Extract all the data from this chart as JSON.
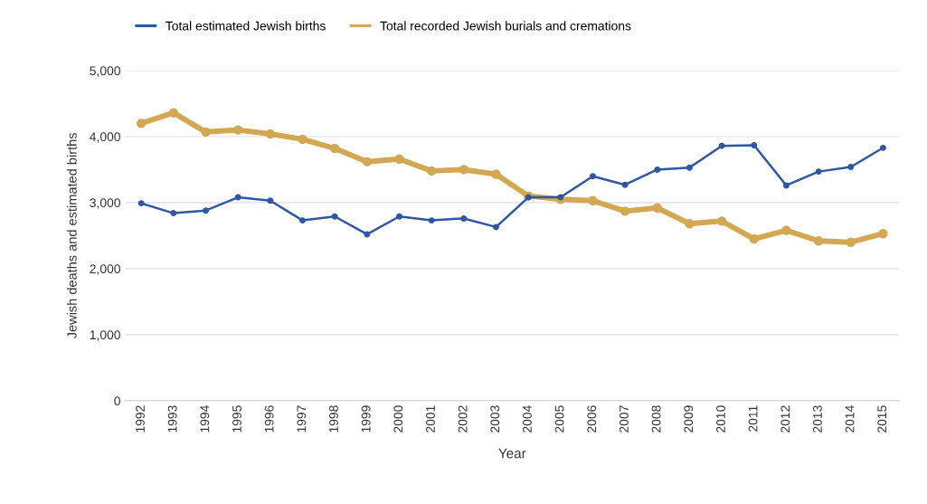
{
  "chart_data": {
    "type": "line",
    "xlabel": "Year",
    "ylabel": "Jewish deaths and estimated births",
    "categories": [
      "1992",
      "1993",
      "1994",
      "1995",
      "1996",
      "1997",
      "1998",
      "1999",
      "2000",
      "2001",
      "2002",
      "2003",
      "2004",
      "2005",
      "2006",
      "2007",
      "2008",
      "2009",
      "2010",
      "2011",
      "2012",
      "2013",
      "2014",
      "2015"
    ],
    "series": [
      {
        "name": "Total estimated Jewish births",
        "color": "#2f57a4",
        "values": [
          2990,
          2840,
          2880,
          3080,
          3030,
          2730,
          2790,
          2520,
          2790,
          2730,
          2760,
          2630,
          3080,
          3080,
          3400,
          3270,
          3500,
          3530,
          3860,
          3870,
          3260,
          3470,
          3540,
          3830
        ]
      },
      {
        "name": "Total recorded Jewish burials and cremations",
        "color": "#d4a853",
        "values": [
          4200,
          4360,
          4070,
          4100,
          4040,
          3960,
          3820,
          3620,
          3660,
          3480,
          3500,
          3430,
          3100,
          3050,
          3030,
          2870,
          2920,
          2680,
          2720,
          2450,
          2580,
          2420,
          2400,
          2530
        ]
      }
    ],
    "ylim": [
      0,
      5000
    ],
    "yticks": [
      {
        "value": 0,
        "label": "0"
      },
      {
        "value": 1000,
        "label": "1,000"
      },
      {
        "value": 2000,
        "label": "2,000"
      },
      {
        "value": 3000,
        "label": "3,000"
      },
      {
        "value": 4000,
        "label": "4,000"
      },
      {
        "value": 5000,
        "label": "5,000"
      }
    ],
    "grid": "y",
    "legend": "top left",
    "marker": "circle",
    "line_style": "solid"
  }
}
